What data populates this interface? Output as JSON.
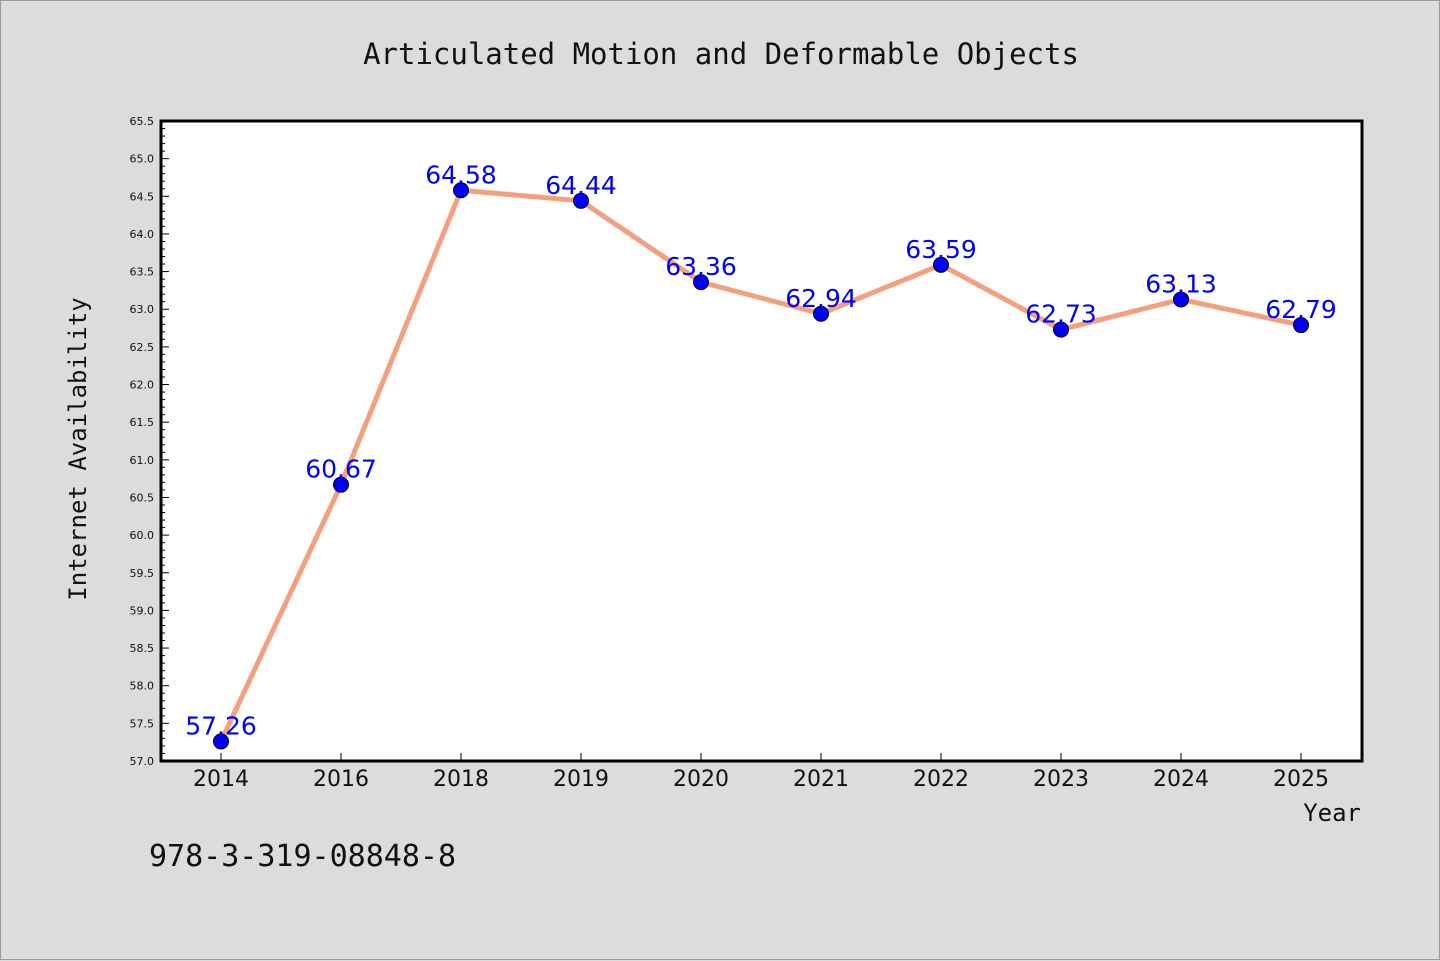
{
  "chart_data": {
    "type": "line",
    "title": "Articulated Motion and Deformable Objects",
    "xlabel": "Year",
    "ylabel": "Internet Availability",
    "categories": [
      "2014",
      "2016",
      "2018",
      "2019",
      "2020",
      "2021",
      "2022",
      "2023",
      "2024",
      "2025"
    ],
    "values": [
      57.26,
      60.67,
      64.58,
      64.44,
      63.36,
      62.94,
      63.59,
      62.73,
      63.13,
      62.79
    ],
    "data_labels": [
      "57.26",
      "60.67",
      "64.58",
      "64.44",
      "63.36",
      "62.94",
      "63.59",
      "62.73",
      "63.13",
      "62.79"
    ],
    "ylim": [
      57.0,
      65.5
    ],
    "yticks": [
      "57.0",
      "57.5",
      "58.0",
      "58.5",
      "59.0",
      "59.5",
      "60.0",
      "60.5",
      "61.0",
      "61.5",
      "62.0",
      "62.5",
      "63.0",
      "63.5",
      "64.0",
      "64.5",
      "65.0",
      "65.5"
    ],
    "grid": false,
    "line_color": "#f4a07e",
    "marker_color": "#0000ff",
    "label_color": "#0000ff",
    "plot_background": "#ffffff",
    "figure_background": "#dcdcdc"
  },
  "footer": {
    "text": "978-3-319-08848-8"
  }
}
